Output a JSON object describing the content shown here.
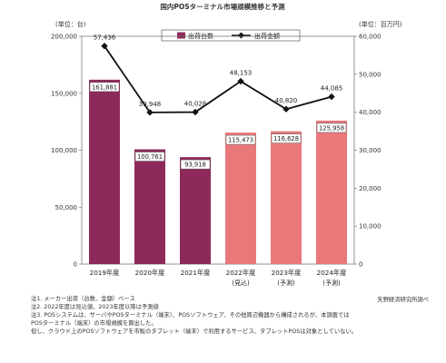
{
  "chart_data": {
    "type": "bar",
    "title": "国内POSターミナル市場規模推移と予測",
    "categories": [
      "2019年度",
      "2020年度",
      "2021年度",
      "2022年度",
      "2023年度",
      "2024年度"
    ],
    "sublabels": [
      "",
      "",
      "",
      "(見込)",
      "(予測)",
      "(予測)"
    ],
    "left_axis_unit": "(単位：台)",
    "right_axis_unit": "(単位：百万円)",
    "left_ylim": [
      0,
      200000
    ],
    "left_ticks": [
      0,
      50000,
      100000,
      150000,
      200000
    ],
    "left_tick_labels": [
      "0",
      "50,000",
      "100,000",
      "150,000",
      "200,000"
    ],
    "right_ylim": [
      0,
      60000
    ],
    "right_ticks": [
      0,
      10000,
      20000,
      30000,
      40000,
      50000,
      60000
    ],
    "right_tick_labels": [
      "0",
      "10,000",
      "20,000",
      "30,000",
      "40,000",
      "50,000",
      "60,000"
    ],
    "series": [
      {
        "name": "出荷台数",
        "kind": "bar",
        "axis": "left",
        "values": [
          161881,
          100761,
          93918,
          115473,
          116628,
          125958
        ],
        "labels": [
          "161,881",
          "100,761",
          "93,918",
          "115,473",
          "116,628",
          "125,958"
        ],
        "colors": [
          "#8e2a5b",
          "#8e2a5b",
          "#8e2a5b",
          "#e8787a",
          "#e8787a",
          "#e8787a"
        ]
      },
      {
        "name": "出荷金額",
        "kind": "line",
        "axis": "right",
        "values": [
          57436,
          39948,
          40028,
          48153,
          40820,
          44085
        ],
        "labels": [
          "57,436",
          "39,948",
          "40,028",
          "48,153",
          "40,820",
          "44,085"
        ],
        "color": "#111111"
      }
    ],
    "legend_placement": "top-center",
    "grid": false
  },
  "notes": [
    "注1. メーカー出荷（台数、金額）ベース",
    "注2. 2022年度は見込値、2023年度以降は予測値",
    "注3. POSシステムは、サーバやPOSターミナル（端末）、POSソフトウェア、その他周辺機器から構成されるが、本調査では",
    "POSターミナル（端末）の市場規模を算出した。",
    "但し、クラウド上のPOSソフトウェアを市販のタブレット（端末）で利用するサービス、タブレットPOSは対象としていない。"
  ],
  "source": "矢野経済研究所調べ"
}
